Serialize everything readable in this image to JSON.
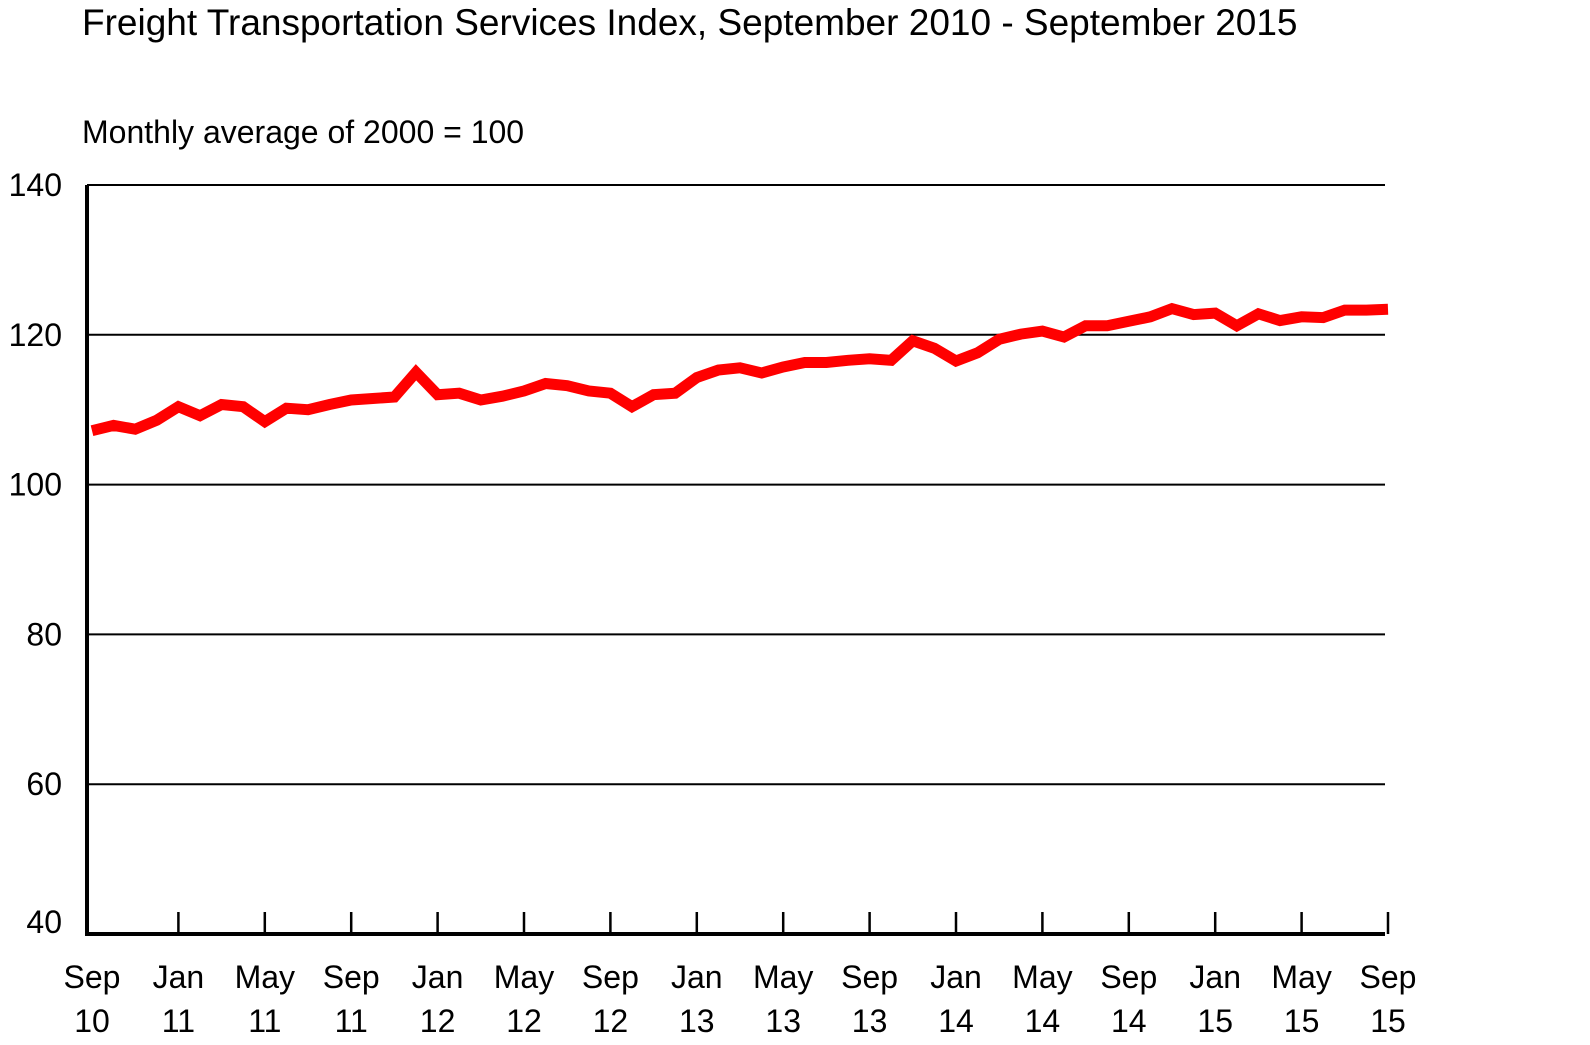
{
  "chart_data": {
    "type": "line",
    "title": "Freight Transportation Services Index, September 2010 - September 2015",
    "subtitle": "Monthly average of 2000 = 100",
    "xlabel": "",
    "ylabel": "",
    "ylim": [
      40,
      140
    ],
    "y_ticks": [
      "40",
      "60",
      "80",
      "100",
      "120",
      "140"
    ],
    "x_tick_labels": [
      {
        "month": "Sep",
        "year": "10"
      },
      {
        "month": "Jan",
        "year": "11"
      },
      {
        "month": "May",
        "year": "11"
      },
      {
        "month": "Sep",
        "year": "11"
      },
      {
        "month": "Jan",
        "year": "12"
      },
      {
        "month": "May",
        "year": "12"
      },
      {
        "month": "Sep",
        "year": "12"
      },
      {
        "month": "Jan",
        "year": "13"
      },
      {
        "month": "May",
        "year": "13"
      },
      {
        "month": "Sep",
        "year": "13"
      },
      {
        "month": "Jan",
        "year": "14"
      },
      {
        "month": "May",
        "year": "14"
      },
      {
        "month": "Sep",
        "year": "14"
      },
      {
        "month": "Jan",
        "year": "15"
      },
      {
        "month": "May",
        "year": "15"
      },
      {
        "month": "Sep",
        "year": "15"
      }
    ],
    "grid": true,
    "series_color": "#ff0000",
    "x": [
      "2010-09",
      "2010-10",
      "2010-11",
      "2010-12",
      "2011-01",
      "2011-02",
      "2011-03",
      "2011-04",
      "2011-05",
      "2011-06",
      "2011-07",
      "2011-08",
      "2011-09",
      "2011-10",
      "2011-11",
      "2011-12",
      "2012-01",
      "2012-02",
      "2012-03",
      "2012-04",
      "2012-05",
      "2012-06",
      "2012-07",
      "2012-08",
      "2012-09",
      "2012-10",
      "2012-11",
      "2012-12",
      "2013-01",
      "2013-02",
      "2013-03",
      "2013-04",
      "2013-05",
      "2013-06",
      "2013-07",
      "2013-08",
      "2013-09",
      "2013-10",
      "2013-11",
      "2013-12",
      "2014-01",
      "2014-02",
      "2014-03",
      "2014-04",
      "2014-05",
      "2014-06",
      "2014-07",
      "2014-08",
      "2014-09",
      "2014-10",
      "2014-11",
      "2014-12",
      "2015-01",
      "2015-02",
      "2015-03",
      "2015-04",
      "2015-05",
      "2015-06",
      "2015-07",
      "2015-08",
      "2015-09"
    ],
    "series": [
      {
        "values": [
          107.2,
          107.9,
          107.4,
          108.6,
          110.4,
          109.2,
          110.7,
          110.4,
          108.4,
          110.2,
          110.0,
          110.7,
          111.3,
          111.5,
          111.7,
          115.0,
          112.0,
          112.2,
          111.3,
          111.8,
          112.5,
          113.5,
          113.2,
          112.5,
          112.2,
          110.4,
          112.0,
          112.2,
          114.3,
          115.3,
          115.6,
          114.9,
          115.7,
          116.3,
          116.3,
          116.6,
          116.8,
          116.6,
          119.2,
          118.2,
          116.5,
          117.6,
          119.4,
          120.1,
          120.5,
          119.7,
          121.2,
          121.2,
          121.8,
          122.4,
          123.5,
          122.7,
          122.9,
          121.2,
          122.8,
          121.9,
          122.4,
          122.3,
          123.3,
          123.3,
          123.4
        ]
      }
    ]
  }
}
